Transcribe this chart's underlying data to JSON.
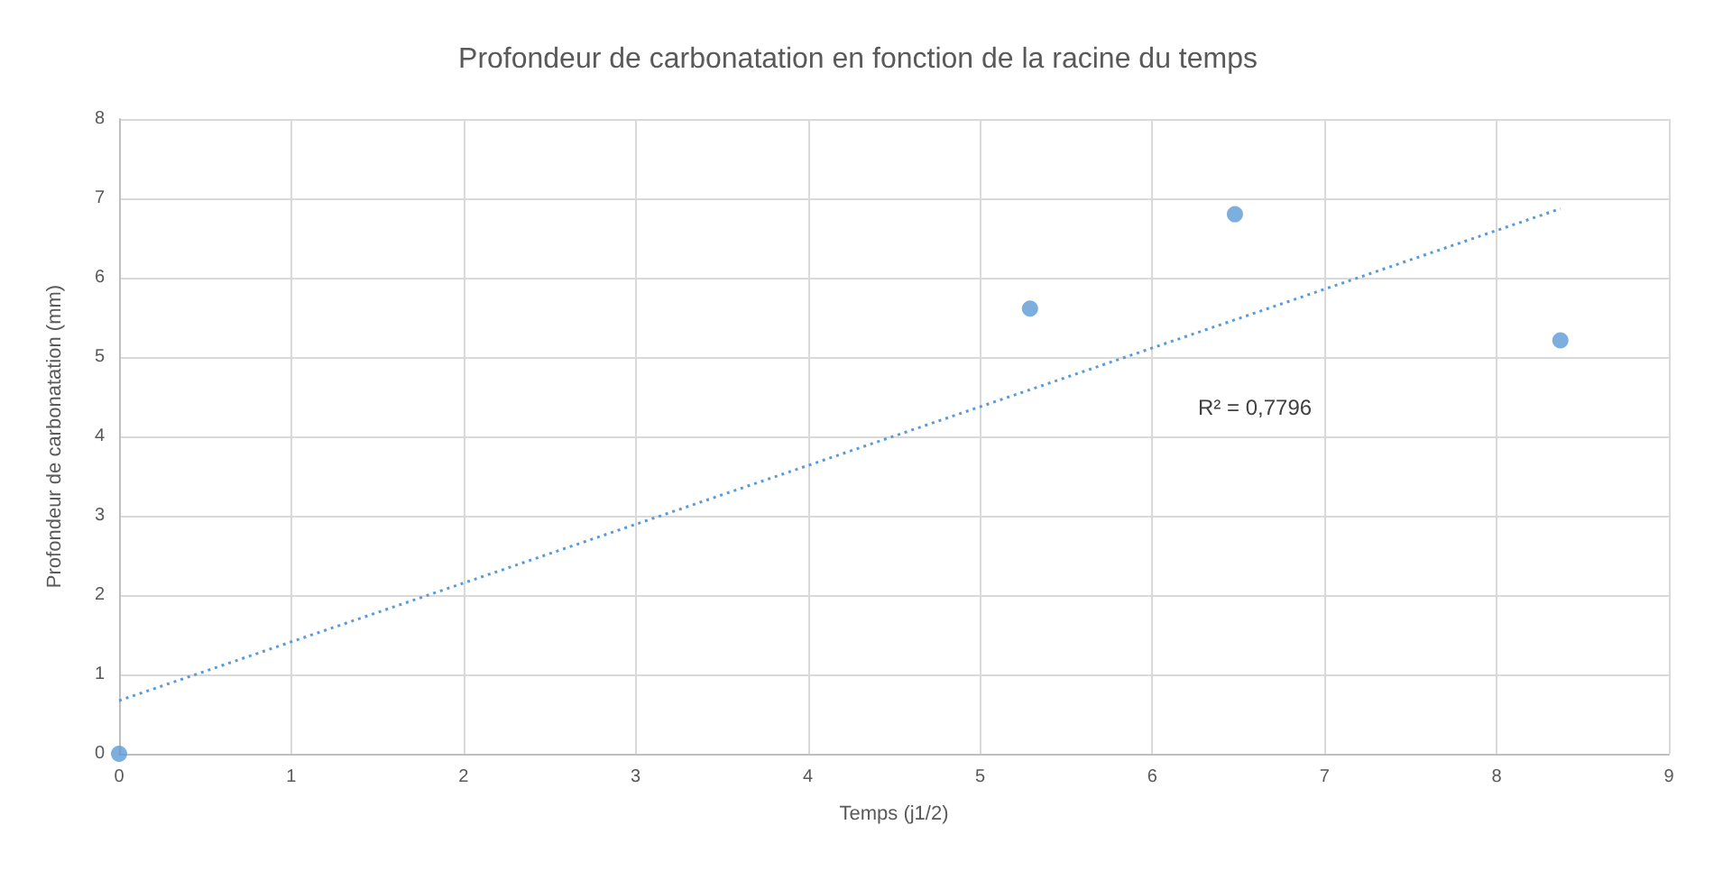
{
  "chart_data": {
    "type": "scatter",
    "title": "Profondeur de carbonatation en fonction de la racine du temps",
    "xlabel": "Temps (j1/2)",
    "ylabel": "Profondeur de carbonatation (mm)",
    "x": [
      0,
      5.29,
      6.48,
      8.37
    ],
    "series": [
      {
        "color": "#5b9bd5",
        "values": [
          0,
          5.61,
          6.8,
          5.21
        ],
        "marker": "circle"
      },
      {
        "type": "line",
        "color": "#5b9bd5",
        "x": [
          0,
          8.37
        ],
        "values": [
          0.67,
          6.87
        ],
        "line_style": "dotted",
        "marker": "none"
      }
    ],
    "annotations": [
      "R² = 0,7796"
    ],
    "xlim": [
      0,
      9
    ],
    "xticks": [
      0,
      1,
      2,
      3,
      4,
      5,
      6,
      7,
      8,
      9
    ],
    "ylim": [
      0,
      8
    ],
    "yticks": [
      0,
      1,
      2,
      3,
      4,
      5,
      6,
      7,
      8
    ],
    "grid": true
  }
}
